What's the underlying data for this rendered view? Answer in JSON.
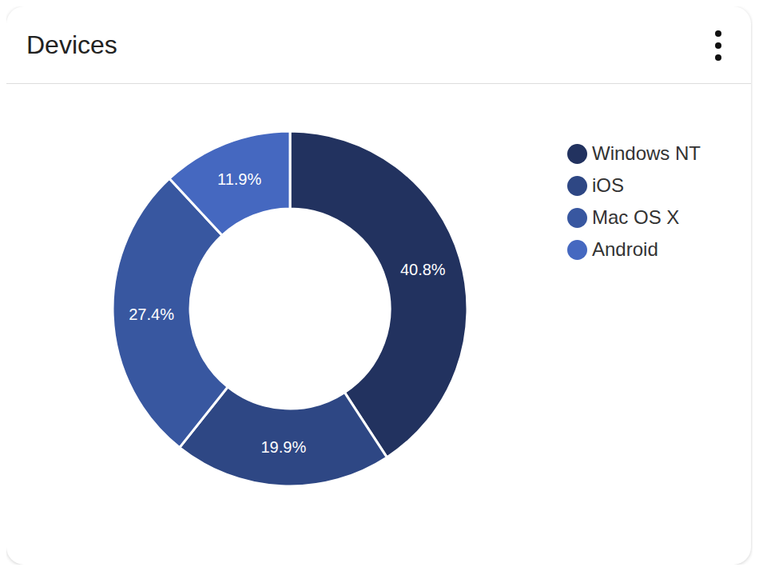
{
  "chart_data": {
    "type": "donut",
    "title": "Devices",
    "categories": [
      "Windows NT",
      "iOS",
      "Mac OS X",
      "Android"
    ],
    "values": [
      40.8,
      19.9,
      27.4,
      11.9
    ],
    "value_labels": [
      "40.8%",
      "19.9%",
      "27.4%",
      "11.9%"
    ],
    "colors": [
      "#22325f",
      "#2e4784",
      "#3857a0",
      "#4568c0"
    ],
    "data_labels": true,
    "legend": "right"
  }
}
